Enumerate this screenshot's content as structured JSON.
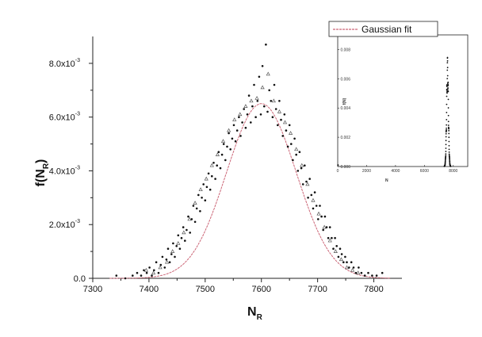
{
  "chart_data": [
    {
      "type": "scatter",
      "title": "",
      "xlabel": "N",
      "xlabel_sub": "R",
      "ylabel": "f(N",
      "ylabel_sub": "R",
      "ylabel_close": ")",
      "xlim": [
        7300,
        7850
      ],
      "ylim": [
        0,
        0.009
      ],
      "x_ticks": [
        7300,
        7400,
        7500,
        7600,
        7700,
        7800
      ],
      "x_tick_labels": [
        "7300",
        "7400",
        "7500",
        "7600",
        "7700",
        "7800"
      ],
      "y_ticks": [
        0,
        0.002,
        0.004,
        0.006,
        0.008
      ],
      "y_tick_labels": [
        {
          "base": "0.0",
          "exp": ""
        },
        {
          "base": "2.0x10",
          "exp": "-3"
        },
        {
          "base": "4.0x10",
          "exp": "-3"
        },
        {
          "base": "6.0x10",
          "exp": "-3"
        },
        {
          "base": "8.0x10",
          "exp": "-3"
        }
      ],
      "legend_position": "top-right",
      "series": [
        {
          "name": "",
          "marker": "dot",
          "color": "#111111",
          "points": [
            [
              7342,
              0.0001
            ],
            [
              7358,
              0.0
            ],
            [
              7371,
              0.0001
            ],
            [
              7379,
              0.0002
            ],
            [
              7386,
              0.0001
            ],
            [
              7391,
              0.0003
            ],
            [
              7396,
              0.0002
            ],
            [
              7401,
              0.0004
            ],
            [
              7405,
              0.0001
            ],
            [
              7409,
              0.0003
            ],
            [
              7413,
              0.0006
            ],
            [
              7417,
              0.0002
            ],
            [
              7421,
              0.0005
            ],
            [
              7424,
              0.0008
            ],
            [
              7428,
              0.0004
            ],
            [
              7431,
              0.0007
            ],
            [
              7434,
              0.0011
            ],
            [
              7437,
              0.0006
            ],
            [
              7440,
              0.0009
            ],
            [
              7443,
              0.0013
            ],
            [
              7446,
              0.0008
            ],
            [
              7449,
              0.0012
            ],
            [
              7452,
              0.0016
            ],
            [
              7455,
              0.0011
            ],
            [
              7458,
              0.0015
            ],
            [
              7461,
              0.0019
            ],
            [
              7464,
              0.0014
            ],
            [
              7467,
              0.0018
            ],
            [
              7470,
              0.0023
            ],
            [
              7473,
              0.0017
            ],
            [
              7476,
              0.0022
            ],
            [
              7479,
              0.0027
            ],
            [
              7482,
              0.0021
            ],
            [
              7485,
              0.0026
            ],
            [
              7488,
              0.0031
            ],
            [
              7491,
              0.0025
            ],
            [
              7494,
              0.003
            ],
            [
              7497,
              0.0035
            ],
            [
              7500,
              0.0029
            ],
            [
              7503,
              0.0034
            ],
            [
              7506,
              0.0039
            ],
            [
              7509,
              0.0033
            ],
            [
              7512,
              0.0038
            ],
            [
              7515,
              0.0043
            ],
            [
              7518,
              0.0037
            ],
            [
              7521,
              0.0042
            ],
            [
              7524,
              0.0047
            ],
            [
              7527,
              0.0041
            ],
            [
              7530,
              0.0046
            ],
            [
              7533,
              0.005
            ],
            [
              7536,
              0.0044
            ],
            [
              7539,
              0.0049
            ],
            [
              7542,
              0.0054
            ],
            [
              7545,
              0.0048
            ],
            [
              7548,
              0.0052
            ],
            [
              7551,
              0.0057
            ],
            [
              7554,
              0.0051
            ],
            [
              7557,
              0.0055
            ],
            [
              7560,
              0.006
            ],
            [
              7563,
              0.0053
            ],
            [
              7566,
              0.0058
            ],
            [
              7569,
              0.0063
            ],
            [
              7572,
              0.0056
            ],
            [
              7575,
              0.0061
            ],
            [
              7578,
              0.0068
            ],
            [
              7581,
              0.0058
            ],
            [
              7584,
              0.0064
            ],
            [
              7587,
              0.0072
            ],
            [
              7590,
              0.006
            ],
            [
              7593,
              0.0066
            ],
            [
              7596,
              0.0075
            ],
            [
              7599,
              0.0061
            ],
            [
              7602,
              0.0079
            ],
            [
              7605,
              0.0064
            ],
            [
              7608,
              0.0087
            ],
            [
              7611,
              0.0062
            ],
            [
              7614,
              0.007
            ],
            [
              7617,
              0.0066
            ],
            [
              7620,
              0.006
            ],
            [
              7623,
              0.0072
            ],
            [
              7626,
              0.0063
            ],
            [
              7629,
              0.0057
            ],
            [
              7632,
              0.0066
            ],
            [
              7635,
              0.0059
            ],
            [
              7638,
              0.0053
            ],
            [
              7641,
              0.0061
            ],
            [
              7644,
              0.0055
            ],
            [
              7647,
              0.0049
            ],
            [
              7650,
              0.0057
            ],
            [
              7653,
              0.005
            ],
            [
              7656,
              0.0044
            ],
            [
              7659,
              0.0052
            ],
            [
              7662,
              0.0046
            ],
            [
              7665,
              0.004
            ],
            [
              7668,
              0.0047
            ],
            [
              7671,
              0.0041
            ],
            [
              7674,
              0.0035
            ],
            [
              7677,
              0.0042
            ],
            [
              7680,
              0.0036
            ],
            [
              7683,
              0.003
            ],
            [
              7686,
              0.0037
            ],
            [
              7689,
              0.0031
            ],
            [
              7692,
              0.0026
            ],
            [
              7695,
              0.0032
            ],
            [
              7698,
              0.0027
            ],
            [
              7701,
              0.0022
            ],
            [
              7704,
              0.0027
            ],
            [
              7707,
              0.0023
            ],
            [
              7710,
              0.0018
            ],
            [
              7713,
              0.0023
            ],
            [
              7716,
              0.0019
            ],
            [
              7719,
              0.0015
            ],
            [
              7722,
              0.0019
            ],
            [
              7725,
              0.0015
            ],
            [
              7728,
              0.0011
            ],
            [
              7731,
              0.0015
            ],
            [
              7734,
              0.0012
            ],
            [
              7737,
              0.0008
            ],
            [
              7740,
              0.0011
            ],
            [
              7743,
              0.0009
            ],
            [
              7746,
              0.0006
            ],
            [
              7749,
              0.0008
            ],
            [
              7752,
              0.0006
            ],
            [
              7756,
              0.0004
            ],
            [
              7760,
              0.0006
            ],
            [
              7764,
              0.0004
            ],
            [
              7768,
              0.0002
            ],
            [
              7773,
              0.0004
            ],
            [
              7778,
              0.0002
            ],
            [
              7784,
              0.0001
            ],
            [
              7790,
              0.0002
            ],
            [
              7797,
              0.0001
            ],
            [
              7805,
              0.0001
            ],
            [
              7815,
              0.0002
            ]
          ]
        },
        {
          "name": "",
          "marker": "triangle",
          "color": "#555555",
          "points": [
            [
              7395,
              0.0003
            ],
            [
              7408,
              0.0002
            ],
            [
              7420,
              0.0004
            ],
            [
              7432,
              0.0006
            ],
            [
              7442,
              0.001
            ],
            [
              7452,
              0.0013
            ],
            [
              7462,
              0.0017
            ],
            [
              7472,
              0.0022
            ],
            [
              7482,
              0.0028
            ],
            [
              7492,
              0.0033
            ],
            [
              7502,
              0.0037
            ],
            [
              7512,
              0.0042
            ],
            [
              7522,
              0.0046
            ],
            [
              7532,
              0.0051
            ],
            [
              7542,
              0.0055
            ],
            [
              7552,
              0.0059
            ],
            [
              7562,
              0.0061
            ],
            [
              7572,
              0.0064
            ],
            [
              7582,
              0.0066
            ],
            [
              7592,
              0.0067
            ],
            [
              7602,
              0.0071
            ],
            [
              7612,
              0.0076
            ],
            [
              7622,
              0.0066
            ],
            [
              7632,
              0.0062
            ],
            [
              7642,
              0.0058
            ],
            [
              7652,
              0.0054
            ],
            [
              7662,
              0.0048
            ],
            [
              7672,
              0.0042
            ],
            [
              7682,
              0.0035
            ],
            [
              7692,
              0.0029
            ],
            [
              7702,
              0.0024
            ],
            [
              7712,
              0.0019
            ],
            [
              7722,
              0.0014
            ],
            [
              7732,
              0.001
            ],
            [
              7742,
              0.0007
            ],
            [
              7752,
              0.0004
            ],
            [
              7762,
              0.0003
            ],
            [
              7772,
              0.0002
            ]
          ]
        },
        {
          "name": "Gaussian fit",
          "type": "line",
          "color": "#cc6677",
          "mean": 7600,
          "sigma": 62,
          "amplitude": 0.0065
        }
      ]
    },
    {
      "type": "scatter",
      "title": "",
      "xlabel": "N",
      "ylabel": "f(N)",
      "xlim": [
        0,
        9000
      ],
      "ylim": [
        0,
        0.009
      ],
      "x_tick_labels": [
        "0",
        "2000",
        "4000",
        "6000",
        "8000"
      ],
      "x_ticks": [
        0,
        2000,
        4000,
        6000,
        8000
      ],
      "y_ticks": [
        0,
        0.002,
        0.004,
        0.006,
        0.008
      ],
      "y_tick_labels": [
        "0.000",
        "0.002",
        "0.004",
        "0.006",
        "0.008"
      ],
      "series": [
        {
          "name": "",
          "marker": "dot",
          "color": "#111111",
          "mean": 7600,
          "sigma": 62,
          "amplitude": 0.0065
        }
      ]
    }
  ]
}
